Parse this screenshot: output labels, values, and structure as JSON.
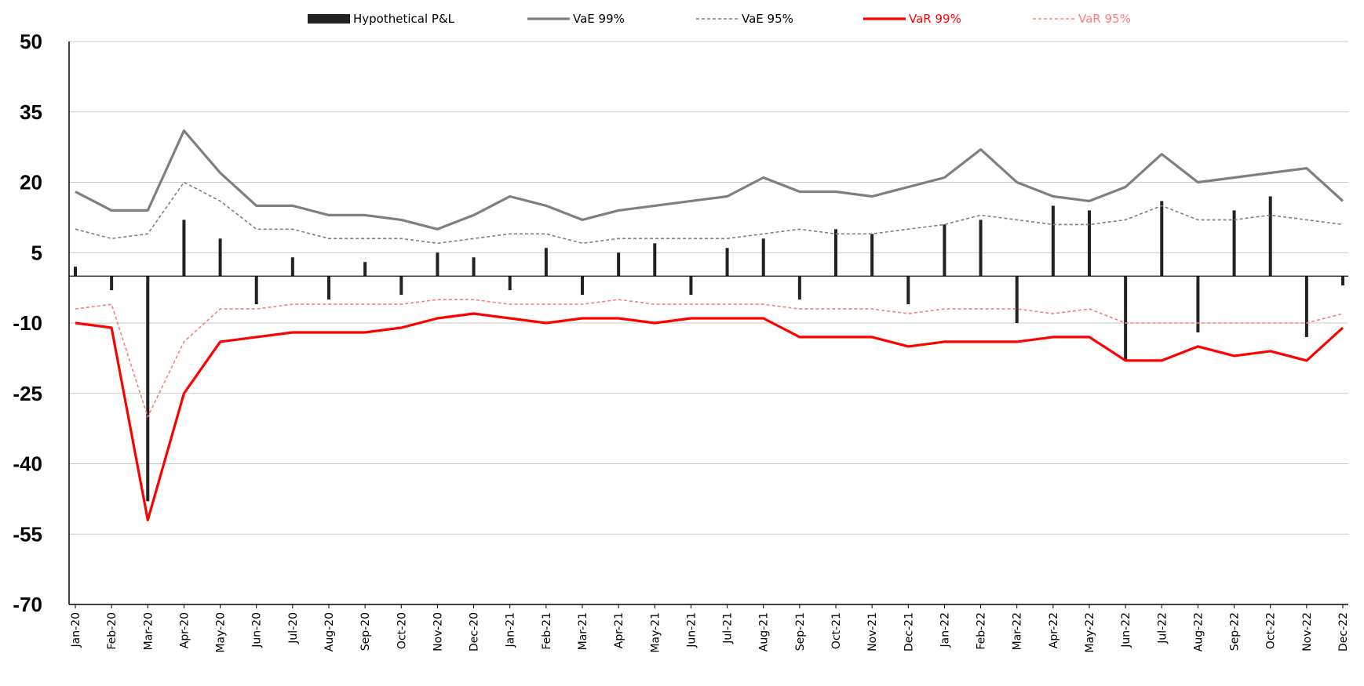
{
  "chart_data": {
    "type": "line",
    "title": "",
    "xlabel": "",
    "ylabel": "",
    "ylim": [
      -70,
      50
    ],
    "yticks": [
      50,
      35,
      20,
      5,
      -10,
      -25,
      -40,
      -55,
      -70
    ],
    "grid": "horizontal",
    "legend_position": "top",
    "categories": [
      "Jan-20",
      "Feb-20",
      "Mar-20",
      "Apr-20",
      "May-20",
      "Jun-20",
      "Jul-20",
      "Aug-20",
      "Sep-20",
      "Oct-20",
      "Nov-20",
      "Dec-20",
      "Jan-21",
      "Feb-21",
      "Mar-21",
      "Apr-21",
      "May-21",
      "Jun-21",
      "Jul-21",
      "Aug-21",
      "Sep-21",
      "Oct-21",
      "Nov-21",
      "Dec-21",
      "Jan-22",
      "Feb-22",
      "Mar-22",
      "Apr-22",
      "May-22",
      "Jun-22",
      "Jul-22",
      "Aug-22",
      "Sep-22",
      "Oct-22",
      "Nov-22",
      "Dec-22"
    ],
    "series": [
      {
        "name": "Hypothetical P&L",
        "kind": "bar",
        "color": "#222222",
        "values": [
          2,
          -3,
          -48,
          12,
          8,
          -6,
          4,
          -5,
          3,
          -4,
          5,
          4,
          -3,
          6,
          -4,
          5,
          7,
          -4,
          6,
          8,
          -5,
          10,
          9,
          -6,
          11,
          12,
          -10,
          15,
          14,
          -18,
          16,
          -12,
          14,
          17,
          -13,
          -2
        ]
      },
      {
        "name": "VaE 99%",
        "kind": "line",
        "color": "#7f7f7f",
        "dash": "none",
        "values": [
          18,
          14,
          14,
          31,
          22,
          15,
          15,
          13,
          13,
          12,
          10,
          13,
          17,
          15,
          12,
          14,
          15,
          16,
          17,
          21,
          18,
          18,
          17,
          19,
          21,
          27,
          20,
          17,
          16,
          19,
          26,
          20,
          21,
          22,
          23,
          16
        ]
      },
      {
        "name": "VaE 95%",
        "kind": "line",
        "color": "#7f7f7f",
        "dash": "4,3",
        "values": [
          10,
          8,
          9,
          20,
          16,
          10,
          10,
          8,
          8,
          8,
          7,
          8,
          9,
          9,
          7,
          8,
          8,
          8,
          8,
          9,
          10,
          9,
          9,
          10,
          11,
          13,
          12,
          11,
          11,
          12,
          15,
          12,
          12,
          13,
          12,
          11
        ]
      },
      {
        "name": "VaR 99%",
        "kind": "line",
        "color": "#ff0000",
        "dash": "none",
        "values": [
          -10,
          -11,
          -52,
          -25,
          -14,
          -13,
          -12,
          -12,
          -12,
          -11,
          -9,
          -8,
          -9,
          -10,
          -9,
          -9,
          -10,
          -9,
          -9,
          -9,
          -13,
          -13,
          -13,
          -15,
          -14,
          -14,
          -14,
          -13,
          -13,
          -18,
          -18,
          -15,
          -17,
          -16,
          -18,
          -11
        ]
      },
      {
        "name": "VaR 95%",
        "kind": "line",
        "color": "#ff7b7b",
        "dash": "4,3",
        "values": [
          -7,
          -6,
          -30,
          -14,
          -7,
          -7,
          -6,
          -6,
          -6,
          -6,
          -5,
          -5,
          -6,
          -6,
          -6,
          -5,
          -6,
          -6,
          -6,
          -6,
          -7,
          -7,
          -7,
          -8,
          -7,
          -7,
          -7,
          -8,
          -7,
          -10,
          -10,
          -10,
          -10,
          -10,
          -10,
          -8
        ]
      }
    ]
  }
}
